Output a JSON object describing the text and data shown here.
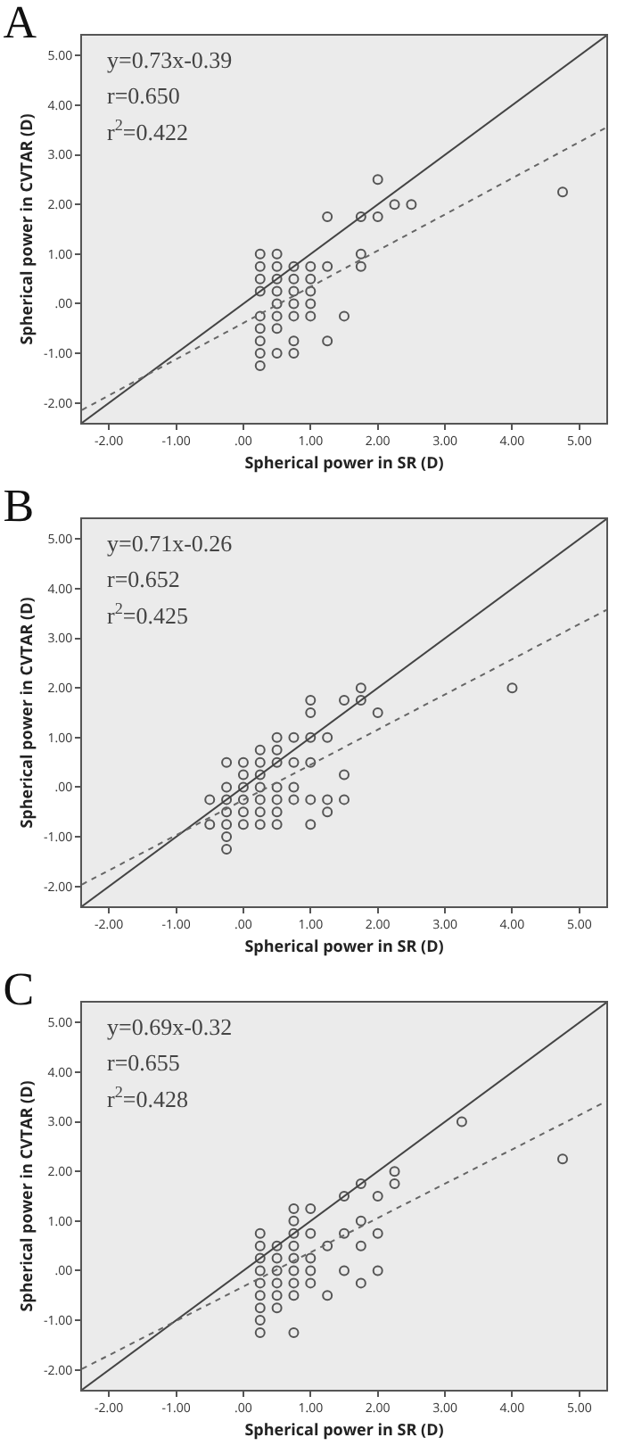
{
  "chart_data": [
    {
      "type": "scatter",
      "title": "A",
      "xlabel": "Spherical power in SR (D)",
      "ylabel": "Spherical power in CVTAR (D)",
      "annotations": [
        "y=0.73x-0.39",
        "r=0.650",
        "r$^{2}$=0.422"
      ],
      "xlim": [
        -2.4,
        5.4
      ],
      "ylim": [
        -2.4,
        5.4
      ],
      "xticks": [
        {
          "value": -2,
          "label": "-2.00"
        },
        {
          "value": -1,
          "label": "-1.00"
        },
        {
          "value": 0,
          "label": ".00"
        },
        {
          "value": 1,
          "label": "1.00"
        },
        {
          "value": 2,
          "label": "2.00"
        },
        {
          "value": 3,
          "label": "3.00"
        },
        {
          "value": 4,
          "label": "4.00"
        },
        {
          "value": 5,
          "label": "5.00"
        }
      ],
      "yticks": [
        {
          "value": -2,
          "label": "-2.00"
        },
        {
          "value": -1,
          "label": "-1.00"
        },
        {
          "value": 0,
          "label": ".00"
        },
        {
          "value": 1,
          "label": "1.00"
        },
        {
          "value": 2,
          "label": "2.00"
        },
        {
          "value": 3,
          "label": "3.00"
        },
        {
          "value": 4,
          "label": "4.00"
        },
        {
          "value": 5,
          "label": "5.00"
        }
      ],
      "grid": false,
      "series": [
        {
          "marker": "circle",
          "color": "#555555",
          "x": [
            0.25,
            0.25,
            0.25,
            0.25,
            0.25,
            0.25,
            0.25,
            0.25,
            0.25,
            0.5,
            0.5,
            0.5,
            0.5,
            0.5,
            0.5,
            0.5,
            0.5,
            0.75,
            0.75,
            0.75,
            0.75,
            0.75,
            0.75,
            0.75,
            1,
            1,
            1,
            1,
            1,
            1.25,
            1.25,
            1.25,
            1.5,
            1.75,
            1.75,
            1.75,
            2,
            2,
            2.25,
            2.5,
            4.75
          ],
          "values": [
            1,
            0.75,
            0.5,
            0.25,
            -0.25,
            -0.5,
            -0.75,
            -1,
            -1.25,
            1,
            0.75,
            0.5,
            0.25,
            0,
            -0.25,
            -0.5,
            -1,
            0.75,
            0.5,
            0.25,
            0,
            -0.25,
            -0.75,
            -1,
            0.75,
            0.5,
            0.25,
            0,
            -0.25,
            1.75,
            0.75,
            -0.75,
            -0.25,
            1.75,
            1,
            0.75,
            2.5,
            1.75,
            2,
            2,
            2.25
          ]
        },
        {
          "type": "line",
          "marker": "none",
          "line_style": "solid",
          "color": "#444444",
          "x": [
            -2.4,
            5.4
          ],
          "values": [
            -2.4,
            5.4
          ]
        },
        {
          "type": "line",
          "marker": "none",
          "line_style": "dotted",
          "color": "#666666",
          "x": [
            -2.4,
            5.4
          ],
          "values": [
            -2.14,
            3.55
          ]
        }
      ]
    },
    {
      "type": "scatter",
      "title": "B",
      "xlabel": "Spherical power in SR (D)",
      "ylabel": "Spherical power in CVTAR (D)",
      "annotations": [
        "y=0.71x-0.26",
        "r=0.652",
        "r$^{2}$=0.425"
      ],
      "xlim": [
        -2.4,
        5.4
      ],
      "ylim": [
        -2.4,
        5.4
      ],
      "xticks": [
        {
          "value": -2,
          "label": "-2.00"
        },
        {
          "value": -1,
          "label": "-1.00"
        },
        {
          "value": 0,
          "label": ".00"
        },
        {
          "value": 1,
          "label": "1.00"
        },
        {
          "value": 2,
          "label": "2.00"
        },
        {
          "value": 3,
          "label": "3.00"
        },
        {
          "value": 4,
          "label": "4.00"
        },
        {
          "value": 5,
          "label": "5.00"
        }
      ],
      "yticks": [
        {
          "value": -2,
          "label": "-2.00"
        },
        {
          "value": -1,
          "label": "-1.00"
        },
        {
          "value": 0,
          "label": ".00"
        },
        {
          "value": 1,
          "label": "1.00"
        },
        {
          "value": 2,
          "label": "2.00"
        },
        {
          "value": 3,
          "label": "3.00"
        },
        {
          "value": 4,
          "label": "4.00"
        },
        {
          "value": 5,
          "label": "5.00"
        }
      ],
      "grid": false,
      "series": [
        {
          "marker": "circle",
          "color": "#555555",
          "x": [
            -0.5,
            -0.5,
            -0.25,
            -0.25,
            -0.25,
            -0.25,
            -0.25,
            -0.25,
            -0.25,
            0,
            0,
            0,
            0,
            0,
            0,
            0.25,
            0.25,
            0.25,
            0.25,
            0.25,
            0.25,
            0.25,
            0.5,
            0.5,
            0.5,
            0.5,
            0.5,
            0.5,
            0.5,
            0.75,
            0.75,
            0.75,
            0.75,
            1,
            1,
            1,
            1,
            1,
            1,
            1.25,
            1.25,
            1.25,
            1.5,
            1.5,
            1.5,
            1.75,
            1.75,
            2,
            4
          ],
          "values": [
            -0.25,
            -0.75,
            0.5,
            0,
            -0.25,
            -0.5,
            -0.75,
            -1,
            -1.25,
            0.5,
            0.25,
            0,
            -0.25,
            -0.5,
            -0.75,
            0.75,
            0.5,
            0.25,
            0,
            -0.25,
            -0.5,
            -0.75,
            1,
            0.75,
            0.5,
            0,
            -0.25,
            -0.5,
            -0.75,
            1,
            0.5,
            0,
            -0.25,
            1.75,
            1.5,
            1,
            0.5,
            -0.25,
            -0.75,
            1,
            -0.25,
            -0.5,
            1.75,
            0.25,
            -0.25,
            2,
            1.75,
            1.5,
            2
          ]
        },
        {
          "type": "line",
          "marker": "none",
          "line_style": "solid",
          "color": "#444444",
          "x": [
            -2.4,
            5.4
          ],
          "values": [
            -2.4,
            5.4
          ]
        },
        {
          "type": "line",
          "marker": "none",
          "line_style": "dotted",
          "color": "#666666",
          "x": [
            -2.4,
            5.4
          ],
          "values": [
            -1.96,
            3.57
          ]
        }
      ]
    },
    {
      "type": "scatter",
      "title": "C",
      "xlabel": "Spherical power in SR (D)",
      "ylabel": "Spherical power in CVTAR (D)",
      "annotations": [
        "y=0.69x-0.32",
        "r=0.655",
        "r$^{2}$=0.428"
      ],
      "xlim": [
        -2.4,
        5.4
      ],
      "ylim": [
        -2.4,
        5.4
      ],
      "xticks": [
        {
          "value": -2,
          "label": "-2.00"
        },
        {
          "value": -1,
          "label": "-1.00"
        },
        {
          "value": 0,
          "label": ".00"
        },
        {
          "value": 1,
          "label": "1.00"
        },
        {
          "value": 2,
          "label": "2.00"
        },
        {
          "value": 3,
          "label": "3.00"
        },
        {
          "value": 4,
          "label": "4.00"
        },
        {
          "value": 5,
          "label": "5.00"
        }
      ],
      "yticks": [
        {
          "value": -2,
          "label": "-2.00"
        },
        {
          "value": -1,
          "label": "-1.00"
        },
        {
          "value": 0,
          "label": ".00"
        },
        {
          "value": 1,
          "label": "1.00"
        },
        {
          "value": 2,
          "label": "2.00"
        },
        {
          "value": 3,
          "label": "3.00"
        },
        {
          "value": 4,
          "label": "4.00"
        },
        {
          "value": 5,
          "label": "5.00"
        }
      ],
      "grid": false,
      "series": [
        {
          "marker": "circle",
          "color": "#555555",
          "x": [
            0.25,
            0.25,
            0.25,
            0.25,
            0.25,
            0.25,
            0.25,
            0.25,
            0.25,
            0.5,
            0.5,
            0.5,
            0.5,
            0.5,
            0.5,
            0.75,
            0.75,
            0.75,
            0.75,
            0.75,
            0.75,
            0.75,
            0.75,
            0.75,
            1,
            1,
            1,
            1,
            1,
            1.25,
            1.25,
            1.5,
            1.5,
            1.5,
            1.75,
            1.75,
            1.75,
            1.75,
            2,
            2,
            2,
            2.25,
            2.25,
            3.25,
            4.75
          ],
          "values": [
            0.75,
            0.5,
            0.25,
            0,
            -0.25,
            -0.5,
            -0.75,
            -1,
            -1.25,
            0.5,
            0.25,
            0,
            -0.25,
            -0.5,
            -0.75,
            1.25,
            1,
            0.75,
            0.5,
            0.25,
            0,
            -0.25,
            -0.5,
            -1.25,
            1.25,
            0.75,
            0.25,
            0,
            -0.25,
            0.5,
            -0.5,
            1.5,
            0.75,
            0,
            1.75,
            1,
            0.5,
            -0.25,
            1.5,
            0.75,
            0,
            2,
            1.75,
            3,
            2.25
          ]
        },
        {
          "type": "line",
          "marker": "none",
          "line_style": "solid",
          "color": "#444444",
          "x": [
            -2.4,
            5.4
          ],
          "values": [
            -2.4,
            5.4
          ]
        },
        {
          "type": "line",
          "marker": "none",
          "line_style": "dotted",
          "color": "#666666",
          "x": [
            -2.4,
            5.4
          ],
          "values": [
            -1.98,
            3.41
          ]
        }
      ]
    }
  ]
}
